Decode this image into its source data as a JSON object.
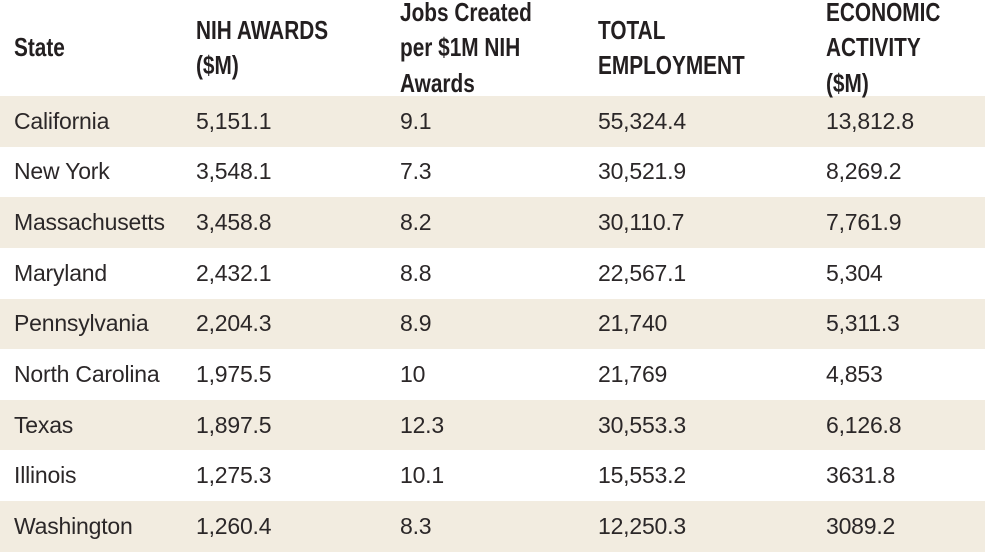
{
  "colors": {
    "stripe": "#f2ece0",
    "header_text": "#231f20",
    "body_text": "#2b2728",
    "background": "#ffffff"
  },
  "chart_data": {
    "type": "table",
    "columns": [
      "State",
      "NIH AWARDS ($M)",
      "Jobs Created per $1M NIH Awards",
      "TOTAL EMPLOYMENT",
      "ECONOMIC ACTIVITY ($M)"
    ],
    "rows": [
      [
        "California",
        "5,151.1",
        "9.1",
        "55,324.4",
        "13,812.8"
      ],
      [
        "New York",
        "3,548.1",
        "7.3",
        "30,521.9",
        "8,269.2"
      ],
      [
        "Massachusetts",
        "3,458.8",
        "8.2",
        "30,110.7",
        "7,761.9"
      ],
      [
        "Maryland",
        "2,432.1",
        "8.8",
        "22,567.1",
        "5,304"
      ],
      [
        "Pennsylvania",
        "2,204.3",
        "8.9",
        "21,740",
        "5,311.3"
      ],
      [
        "North Carolina",
        "1,975.5",
        "10",
        "21,769",
        "4,853"
      ],
      [
        "Texas",
        "1,897.5",
        "12.3",
        "30,553.3",
        "6,126.8"
      ],
      [
        "Illinois",
        "1,275.3",
        "10.1",
        "15,553.2",
        "3631.8"
      ],
      [
        "Washington",
        "1,260.4",
        "8.3",
        "12,250.3",
        "3089.2"
      ]
    ],
    "striped_rows": "odd",
    "legend": "none",
    "grid": "off"
  }
}
